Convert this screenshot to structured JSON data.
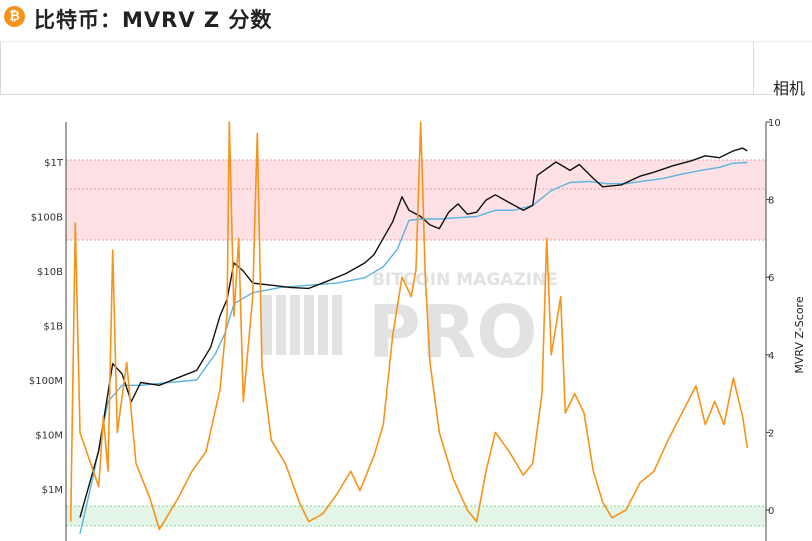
{
  "header": {
    "icon": "bitcoin-icon",
    "icon_glyph": "₿",
    "title": "比特币：MVRV Z 分数"
  },
  "tab_partial_label": "相机",
  "watermark": {
    "line1": "BITCOIN MAGAZINE",
    "line2": "PRO"
  },
  "colors": {
    "price": "#111111",
    "realized_price": "#5bb4de",
    "zscore": "#f7931a",
    "red_band": "#fde1e4",
    "green_band": "#e3f5e6"
  },
  "chart_data": {
    "type": "line",
    "y_left": {
      "scale": "log",
      "ticks": [
        "$1T",
        "$100B",
        "$10B",
        "$1B",
        "$100M",
        "$10M",
        "$1M"
      ],
      "tick_values": [
        1000000000000.0,
        100000000000.0,
        10000000000.0,
        1000000000.0,
        100000000.0,
        10000000.0,
        1000000.0
      ]
    },
    "y_right": {
      "label": "MVRV Z-Score",
      "ticks": [
        "10",
        "8",
        "6",
        "4",
        "2",
        "0"
      ],
      "range": [
        -0.4,
        10
      ]
    },
    "zones": [
      {
        "name": "overvalued",
        "z_from": 7,
        "z_to": 9,
        "color": "#fde1e4"
      },
      {
        "name": "undervalued",
        "z_from": -0.4,
        "z_to": 0.1,
        "color": "#e3f5e6"
      }
    ],
    "series": [
      {
        "key": "market_cap",
        "color": "#111111",
        "points": [
          [
            0.03,
            300000
          ],
          [
            0.07,
            5000000
          ],
          [
            0.1,
            200000000
          ],
          [
            0.12,
            130000000
          ],
          [
            0.14,
            40000000
          ],
          [
            0.16,
            90000000
          ],
          [
            0.2,
            80000000
          ],
          [
            0.24,
            110000000
          ],
          [
            0.28,
            150000000
          ],
          [
            0.31,
            400000000
          ],
          [
            0.33,
            1500000000
          ],
          [
            0.345,
            3000000000
          ],
          [
            0.36,
            14000000000
          ],
          [
            0.38,
            10000000000
          ],
          [
            0.4,
            6000000000
          ],
          [
            0.44,
            5500000000
          ],
          [
            0.48,
            5000000000
          ],
          [
            0.52,
            4800000000
          ],
          [
            0.56,
            6500000000
          ],
          [
            0.6,
            9000000000
          ],
          [
            0.64,
            14000000000
          ],
          [
            0.66,
            20000000000
          ],
          [
            0.68,
            40000000000
          ],
          [
            0.7,
            80000000000
          ],
          [
            0.72,
            230000000000
          ],
          [
            0.735,
            130000000000
          ],
          [
            0.76,
            100000000000
          ],
          [
            0.78,
            70000000000
          ],
          [
            0.8,
            60000000000
          ],
          [
            0.82,
            120000000000
          ],
          [
            0.84,
            170000000000
          ],
          [
            0.86,
            110000000000
          ],
          [
            0.88,
            120000000000
          ],
          [
            0.9,
            200000000000
          ],
          [
            0.92,
            250000000000
          ],
          [
            0.95,
            180000000000
          ],
          [
            0.98,
            130000000000
          ],
          [
            1.0,
            160000000000
          ],
          [
            1.01,
            570000000000
          ],
          [
            1.05,
            1000000000000
          ],
          [
            1.08,
            700000000000
          ],
          [
            1.1,
            900000000000
          ],
          [
            1.13,
            500000000000
          ],
          [
            1.15,
            350000000000
          ],
          [
            1.19,
            380000000000
          ],
          [
            1.23,
            550000000000
          ],
          [
            1.26,
            650000000000
          ],
          [
            1.3,
            850000000000
          ],
          [
            1.34,
            1050000000000
          ],
          [
            1.37,
            1300000000000
          ],
          [
            1.4,
            1200000000000
          ],
          [
            1.43,
            1600000000000
          ],
          [
            1.45,
            1800000000000
          ],
          [
            1.46,
            1600000000000
          ]
        ]
      },
      {
        "key": "realized_cap",
        "color": "#5bb4de",
        "points": [
          [
            0.03,
            150000
          ],
          [
            0.06,
            2000000
          ],
          [
            0.09,
            40000000
          ],
          [
            0.12,
            80000000
          ],
          [
            0.16,
            80000000
          ],
          [
            0.22,
            90000000
          ],
          [
            0.28,
            100000000
          ],
          [
            0.32,
            300000000
          ],
          [
            0.34,
            700000000
          ],
          [
            0.36,
            2500000000
          ],
          [
            0.4,
            4000000000
          ],
          [
            0.46,
            5000000000
          ],
          [
            0.52,
            5500000000
          ],
          [
            0.58,
            6000000000
          ],
          [
            0.64,
            7500000000
          ],
          [
            0.68,
            12000000000
          ],
          [
            0.71,
            25000000000
          ],
          [
            0.735,
            85000000000
          ],
          [
            0.76,
            90000000000
          ],
          [
            0.8,
            90000000000
          ],
          [
            0.84,
            95000000000
          ],
          [
            0.88,
            100000000000
          ],
          [
            0.92,
            130000000000
          ],
          [
            0.96,
            130000000000
          ],
          [
            1.0,
            160000000000
          ],
          [
            1.04,
            300000000000
          ],
          [
            1.08,
            420000000000
          ],
          [
            1.12,
            440000000000
          ],
          [
            1.16,
            400000000000
          ],
          [
            1.2,
            400000000000
          ],
          [
            1.24,
            450000000000
          ],
          [
            1.28,
            500000000000
          ],
          [
            1.32,
            600000000000
          ],
          [
            1.36,
            700000000000
          ],
          [
            1.4,
            800000000000
          ],
          [
            1.43,
            950000000000
          ],
          [
            1.46,
            980000000000
          ]
        ]
      },
      {
        "key": "mvrv_z_score",
        "color": "#f7931a",
        "points": [
          [
            0.01,
            -0.3
          ],
          [
            0.02,
            7.4
          ],
          [
            0.03,
            2.0
          ],
          [
            0.05,
            1.3
          ],
          [
            0.07,
            0.6
          ],
          [
            0.08,
            2.4
          ],
          [
            0.09,
            1.0
          ],
          [
            0.1,
            6.7
          ],
          [
            0.11,
            2.0
          ],
          [
            0.13,
            3.8
          ],
          [
            0.15,
            1.2
          ],
          [
            0.18,
            0.3
          ],
          [
            0.2,
            -0.5
          ],
          [
            0.24,
            0.3
          ],
          [
            0.27,
            1.0
          ],
          [
            0.3,
            1.5
          ],
          [
            0.33,
            3.1
          ],
          [
            0.345,
            5.0
          ],
          [
            0.35,
            10.0
          ],
          [
            0.36,
            5.0
          ],
          [
            0.37,
            7.0
          ],
          [
            0.38,
            2.8
          ],
          [
            0.4,
            5.5
          ],
          [
            0.41,
            9.7
          ],
          [
            0.42,
            3.7
          ],
          [
            0.44,
            1.8
          ],
          [
            0.47,
            1.2
          ],
          [
            0.5,
            0.2
          ],
          [
            0.52,
            -0.3
          ],
          [
            0.55,
            -0.1
          ],
          [
            0.58,
            0.4
          ],
          [
            0.61,
            1.0
          ],
          [
            0.63,
            0.5
          ],
          [
            0.66,
            1.4
          ],
          [
            0.68,
            2.2
          ],
          [
            0.7,
            4.5
          ],
          [
            0.72,
            6.0
          ],
          [
            0.74,
            5.5
          ],
          [
            0.75,
            6.2
          ],
          [
            0.76,
            10.0
          ],
          [
            0.77,
            6.0
          ],
          [
            0.78,
            3.8
          ],
          [
            0.8,
            2.0
          ],
          [
            0.83,
            0.8
          ],
          [
            0.86,
            0.0
          ],
          [
            0.88,
            -0.3
          ],
          [
            0.9,
            1.0
          ],
          [
            0.92,
            2.0
          ],
          [
            0.95,
            1.5
          ],
          [
            0.98,
            0.9
          ],
          [
            1.0,
            1.2
          ],
          [
            1.02,
            3.0
          ],
          [
            1.03,
            7.0
          ],
          [
            1.04,
            4.0
          ],
          [
            1.06,
            5.5
          ],
          [
            1.07,
            2.5
          ],
          [
            1.09,
            3.0
          ],
          [
            1.11,
            2.5
          ],
          [
            1.13,
            1.0
          ],
          [
            1.15,
            0.2
          ],
          [
            1.17,
            -0.2
          ],
          [
            1.2,
            0.0
          ],
          [
            1.23,
            0.7
          ],
          [
            1.26,
            1.0
          ],
          [
            1.29,
            1.8
          ],
          [
            1.32,
            2.5
          ],
          [
            1.35,
            3.2
          ],
          [
            1.37,
            2.2
          ],
          [
            1.39,
            2.8
          ],
          [
            1.41,
            2.2
          ],
          [
            1.43,
            3.4
          ],
          [
            1.45,
            2.4
          ],
          [
            1.46,
            1.6
          ]
        ]
      }
    ]
  }
}
